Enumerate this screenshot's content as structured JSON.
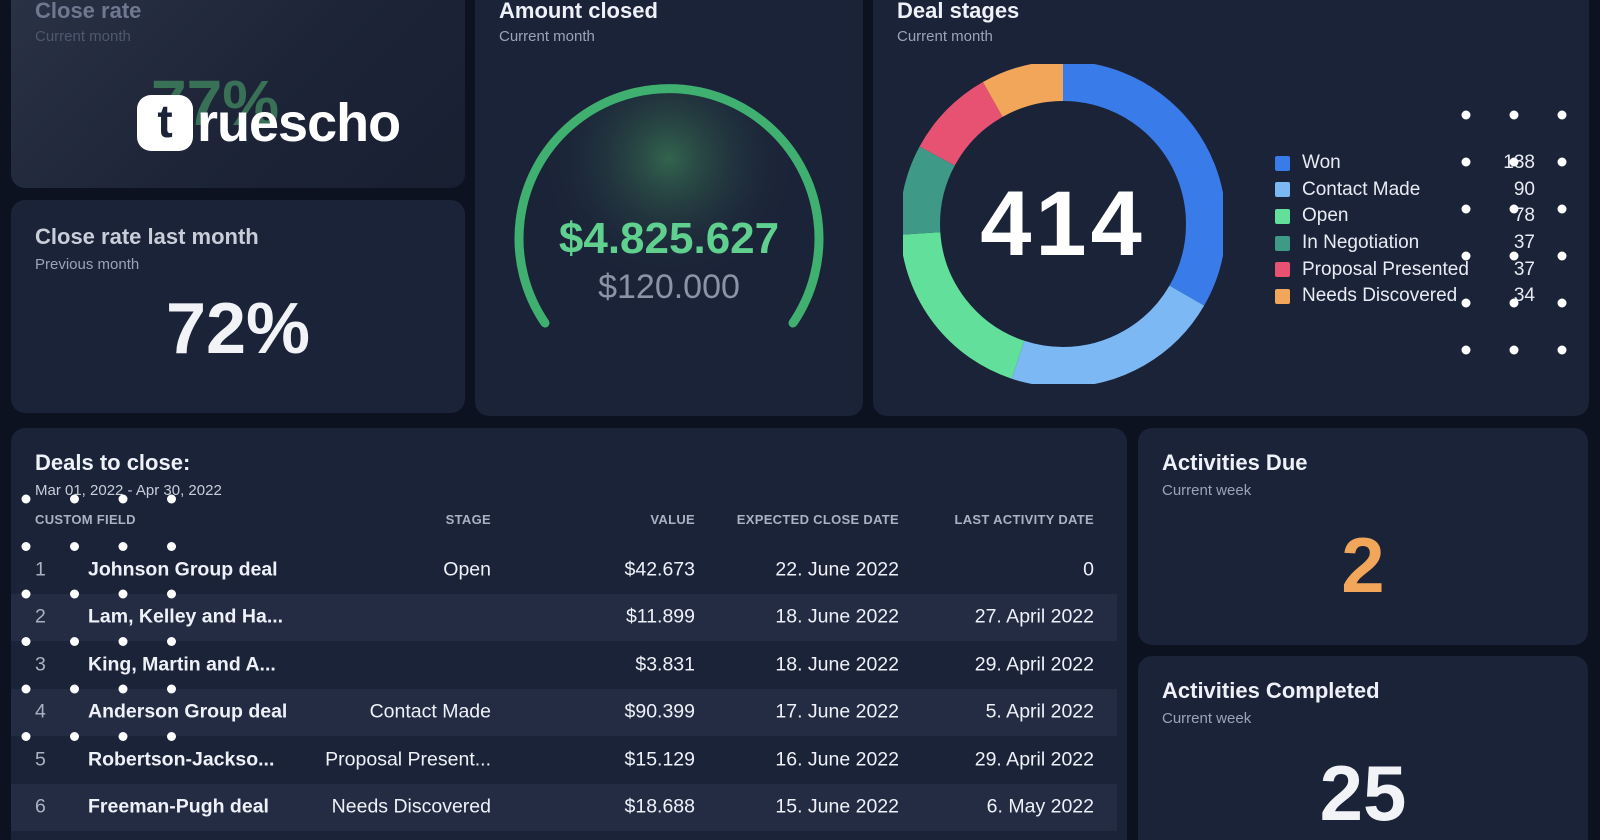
{
  "logo": {
    "mark": "t",
    "text": "ruescho"
  },
  "close_rate": {
    "title": "Close rate",
    "subtitle": "Current month",
    "value": "77%"
  },
  "close_rate_last": {
    "title": "Close rate last month",
    "subtitle": "Previous month",
    "value": "72%"
  },
  "amount_closed": {
    "title": "Amount closed",
    "subtitle": "Current month",
    "value": "$4.825.627",
    "target": "$120.000"
  },
  "deal_stages": {
    "title": "Deal stages",
    "subtitle": "Current month",
    "total": "414",
    "stages": [
      {
        "label": "Won",
        "count": "138",
        "color": "#3a7bea"
      },
      {
        "label": "Contact Made",
        "count": "90",
        "color": "#7cb8f3"
      },
      {
        "label": "Open",
        "count": "78",
        "color": "#62e09b"
      },
      {
        "label": "In Negotiation",
        "count": "37",
        "color": "#3e9a86"
      },
      {
        "label": "Proposal Presented",
        "count": "37",
        "color": "#e85272"
      },
      {
        "label": "Needs Discovered",
        "count": "34",
        "color": "#f2a65a"
      }
    ]
  },
  "deals": {
    "title": "Deals to close:",
    "range": "Mar 01, 2022 - Apr 30, 2022",
    "columns": {
      "custom": "CUSTOM FIELD",
      "stage": "STAGE",
      "value": "VALUE",
      "close": "EXPECTED CLOSE DATE",
      "last": "LAST ACTIVITY DATE"
    },
    "rows": [
      {
        "num": "1",
        "name": "Johnson Group deal",
        "stage": "Open",
        "value": "$42.673",
        "close": "22. June 2022",
        "last": "0"
      },
      {
        "num": "2",
        "name": "Lam, Kelley and Ha...",
        "stage": "",
        "value": "$11.899",
        "close": "18. June 2022",
        "last": "27. April 2022"
      },
      {
        "num": "3",
        "name": "King, Martin and A...",
        "stage": "",
        "value": "$3.831",
        "close": "18. June 2022",
        "last": "29. April 2022"
      },
      {
        "num": "4",
        "name": "Anderson Group deal",
        "stage": "Contact Made",
        "value": "$90.399",
        "close": "17. June 2022",
        "last": "5. April 2022"
      },
      {
        "num": "5",
        "name": "Robertson-Jackso...",
        "stage": "Proposal Present...",
        "value": "$15.129",
        "close": "16. June 2022",
        "last": "29. April 2022"
      },
      {
        "num": "6",
        "name": "Freeman-Pugh deal",
        "stage": "Needs Discovered",
        "value": "$18.688",
        "close": "15. June 2022",
        "last": "6. May 2022"
      }
    ]
  },
  "activities_due": {
    "title": "Activities Due",
    "subtitle": "Current week",
    "value": "2"
  },
  "activities_completed": {
    "title": "Activities Completed",
    "subtitle": "Current week",
    "value": "25"
  }
}
